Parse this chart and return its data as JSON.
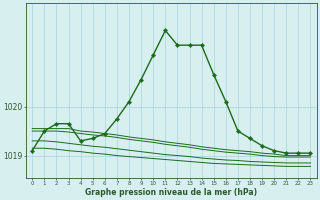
{
  "hours": [
    0,
    1,
    2,
    3,
    4,
    5,
    6,
    7,
    8,
    9,
    10,
    11,
    12,
    13,
    14,
    15,
    16,
    17,
    18,
    19,
    20,
    21,
    22,
    23
  ],
  "main_line": [
    1019.1,
    1019.5,
    1019.65,
    1019.65,
    1019.3,
    1019.35,
    1019.45,
    1019.75,
    1020.1,
    1020.55,
    1021.05,
    1021.55,
    1021.25,
    1021.25,
    1021.25,
    1020.65,
    1020.1,
    1019.5,
    1019.35,
    1019.2,
    1019.1,
    1019.05,
    1019.05,
    1019.05
  ],
  "flat_lines": [
    [
      1019.55,
      1019.55,
      1019.55,
      1019.55,
      1019.5,
      1019.48,
      1019.45,
      1019.42,
      1019.38,
      1019.35,
      1019.32,
      1019.28,
      1019.25,
      1019.22,
      1019.18,
      1019.15,
      1019.12,
      1019.1,
      1019.08,
      1019.05,
      1019.03,
      1019.0,
      1019.0,
      1019.0
    ],
    [
      1019.5,
      1019.5,
      1019.5,
      1019.48,
      1019.45,
      1019.42,
      1019.4,
      1019.37,
      1019.33,
      1019.3,
      1019.27,
      1019.23,
      1019.2,
      1019.17,
      1019.13,
      1019.1,
      1019.07,
      1019.05,
      1019.03,
      1019.0,
      1018.98,
      1018.97,
      1018.97,
      1018.97
    ],
    [
      1019.3,
      1019.3,
      1019.28,
      1019.25,
      1019.22,
      1019.19,
      1019.17,
      1019.14,
      1019.11,
      1019.08,
      1019.05,
      1019.02,
      1019.0,
      1018.98,
      1018.95,
      1018.93,
      1018.91,
      1018.9,
      1018.88,
      1018.87,
      1018.86,
      1018.85,
      1018.85,
      1018.85
    ],
    [
      1019.15,
      1019.15,
      1019.13,
      1019.1,
      1019.08,
      1019.05,
      1019.03,
      1019.0,
      1018.98,
      1018.96,
      1018.94,
      1018.92,
      1018.9,
      1018.88,
      1018.86,
      1018.84,
      1018.83,
      1018.82,
      1018.81,
      1018.8,
      1018.79,
      1018.78,
      1018.78,
      1018.78
    ]
  ],
  "line_color": "#1a6b1a",
  "bg_color": "#d8eff0",
  "grid_color": "#aad4d8",
  "axis_color": "#2d5a2d",
  "ylabel_ticks": [
    1019,
    1020
  ],
  "xlabel": "Graphe pression niveau de la mer (hPa)",
  "ylim_min": 1018.55,
  "ylim_max": 1022.1
}
